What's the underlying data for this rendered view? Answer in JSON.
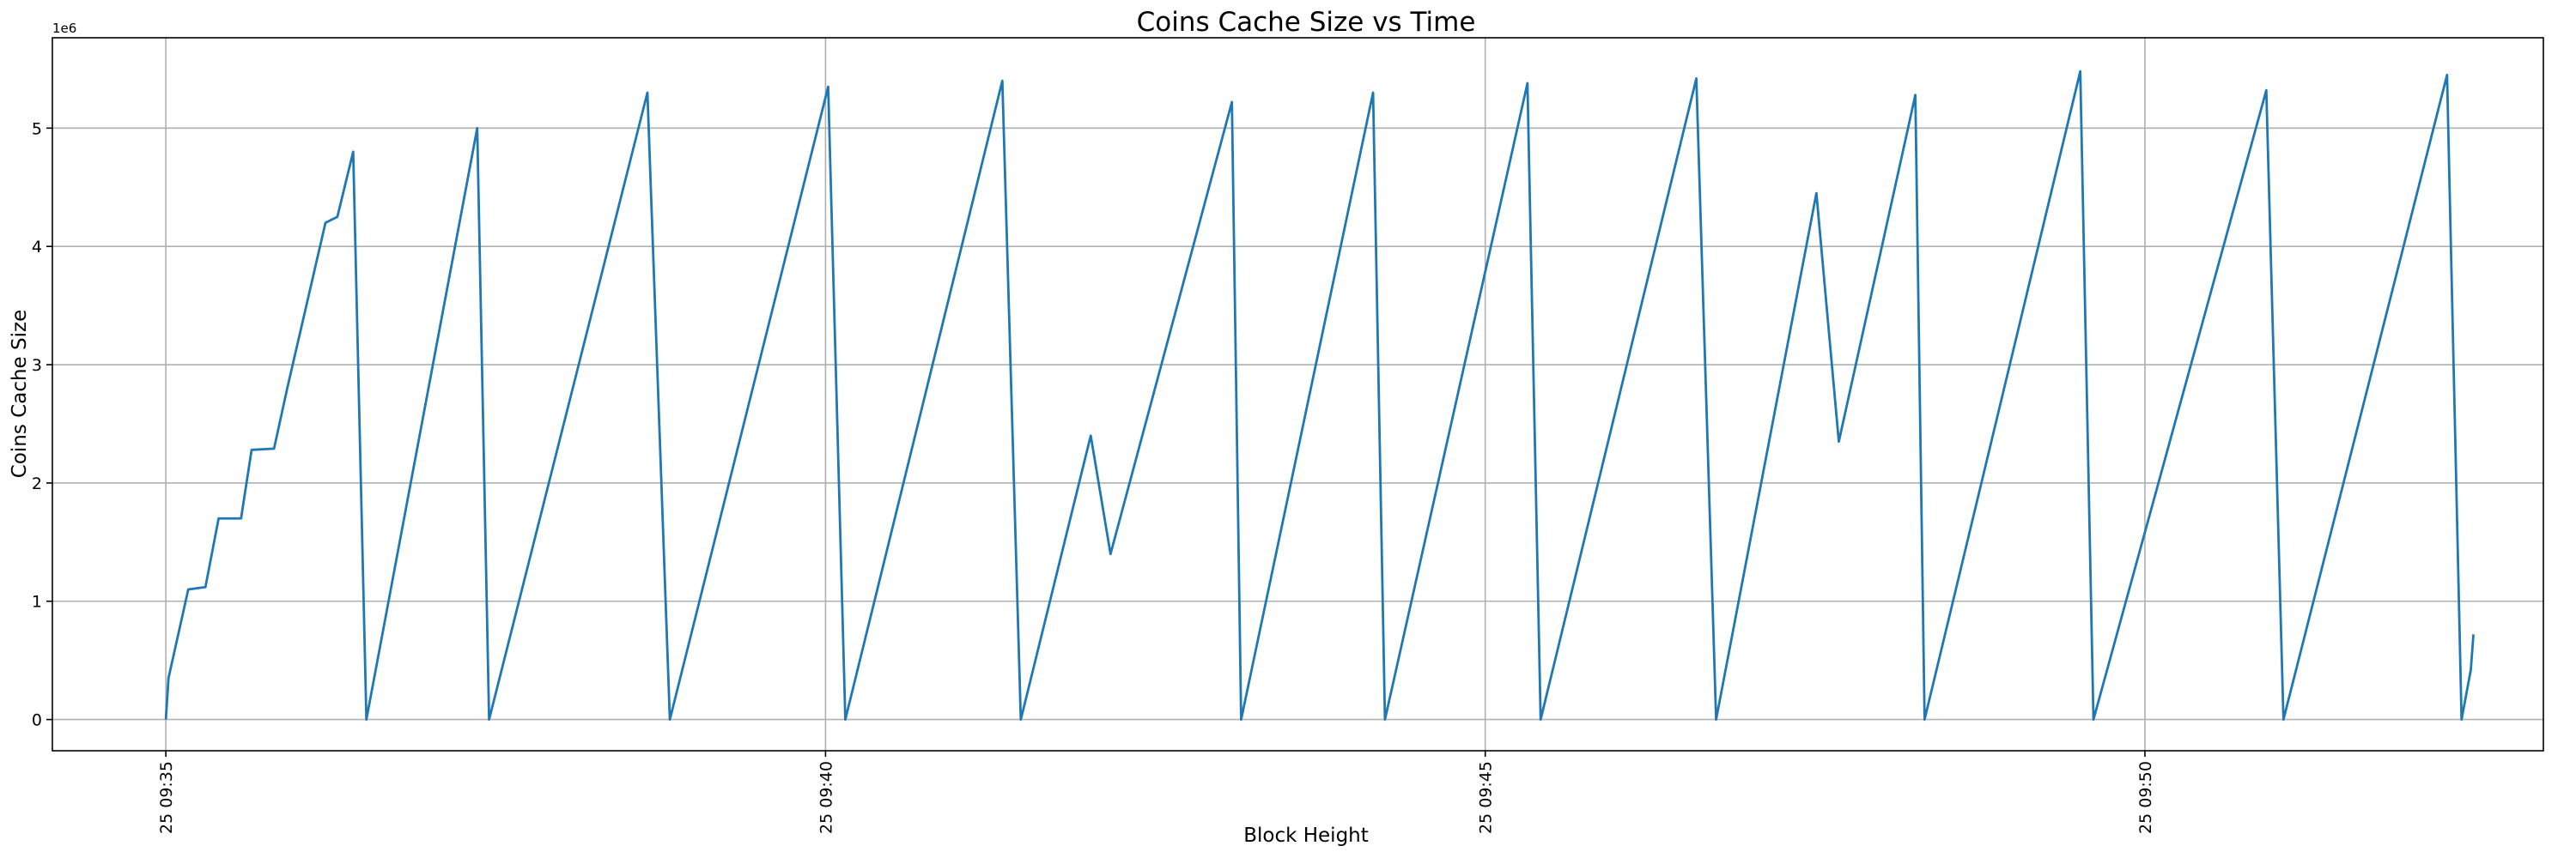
{
  "chart_data": {
    "type": "line",
    "title": "Coins Cache Size vs Time",
    "x_label": "Block Height",
    "y_label": "Coins Cache Size",
    "y_offset_label": "1e6",
    "color": "#1f77b4",
    "grid": true,
    "x": [
      35.0,
      35.02,
      35.17,
      35.3,
      35.4,
      35.57,
      35.65,
      35.82,
      35.92,
      36.21,
      36.3,
      36.42,
      36.52,
      37.36,
      37.45,
      38.65,
      38.82,
      40.02,
      40.15,
      41.34,
      41.48,
      42.01,
      42.16,
      43.08,
      43.15,
      44.15,
      44.24,
      45.32,
      45.42,
      46.6,
      46.75,
      47.51,
      47.68,
      48.26,
      48.33,
      49.51,
      49.61,
      50.92,
      51.05,
      52.29,
      52.4,
      52.47,
      52.49
    ],
    "values": [
      0,
      350000,
      1100000,
      1120000,
      1700000,
      1700000,
      2280000,
      2290000,
      2800000,
      4200000,
      4250000,
      4800000,
      0,
      5000000,
      0,
      5300000,
      0,
      5350000,
      0,
      5400000,
      0,
      2400000,
      1400000,
      5220000,
      0,
      5300000,
      0,
      5380000,
      0,
      5420000,
      0,
      4450000,
      2350000,
      5280000,
      0,
      5480000,
      0,
      5320000,
      0,
      5450000,
      0,
      420000,
      720000
    ],
    "xlim": [
      34.14,
      53.02
    ],
    "xticks": [
      {
        "value": 35,
        "label": "25 09:35"
      },
      {
        "value": 40,
        "label": "25 09:40"
      },
      {
        "value": 45,
        "label": "25 09:45"
      },
      {
        "value": 50,
        "label": "25 09:50"
      }
    ],
    "ylim": [
      -264000,
      5764000
    ],
    "yticks": [
      {
        "value": 0,
        "label": "0"
      },
      {
        "value": 1000000,
        "label": "1"
      },
      {
        "value": 2000000,
        "label": "2"
      },
      {
        "value": 3000000,
        "label": "3"
      },
      {
        "value": 4000000,
        "label": "4"
      },
      {
        "value": 5000000,
        "label": "5"
      }
    ]
  }
}
